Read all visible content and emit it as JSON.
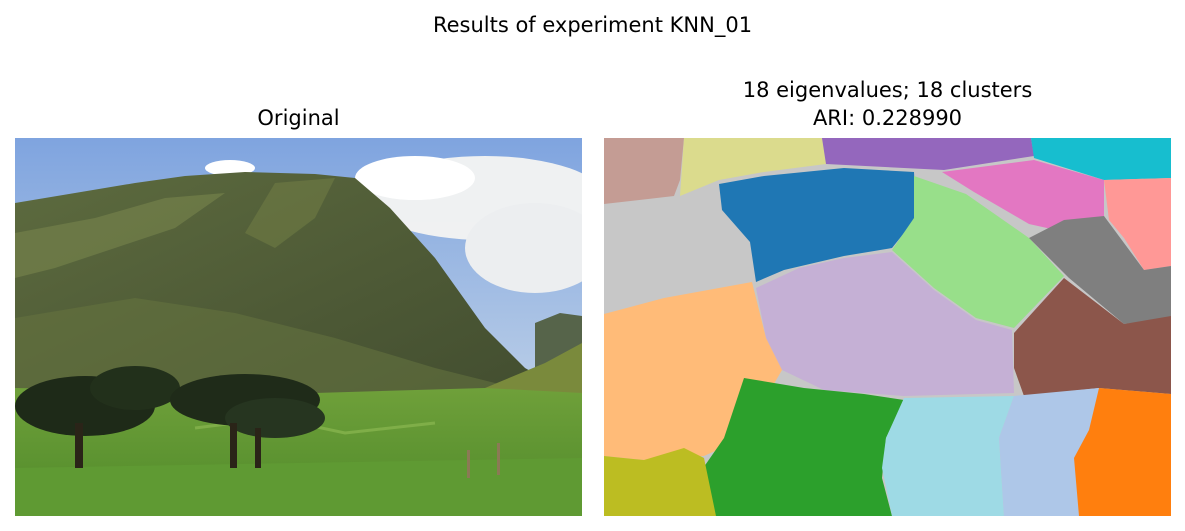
{
  "figure": {
    "suptitle": "Results of experiment KNN_01",
    "left_panel": {
      "title": "Original",
      "content": "landscape photo"
    },
    "right_panel": {
      "title_line1": "18 eigenvalues; 18 clusters",
      "title_line2": "ARI: 0.228990",
      "eigenvalues": 18,
      "clusters": 18,
      "ari": 0.22899
    },
    "segment_colors": [
      "#c49c94",
      "#dbdb8d",
      "#9467bd",
      "#17becf",
      "#1f77b4",
      "#e377c2",
      "#ff9896",
      "#c7c7c7",
      "#98df8a",
      "#7f7f7f",
      "#c5b0d5",
      "#ffbb78",
      "#8c564b",
      "#2ca02c",
      "#9edae5",
      "#aec7e8",
      "#bcbd22",
      "#ff7f0e"
    ]
  }
}
